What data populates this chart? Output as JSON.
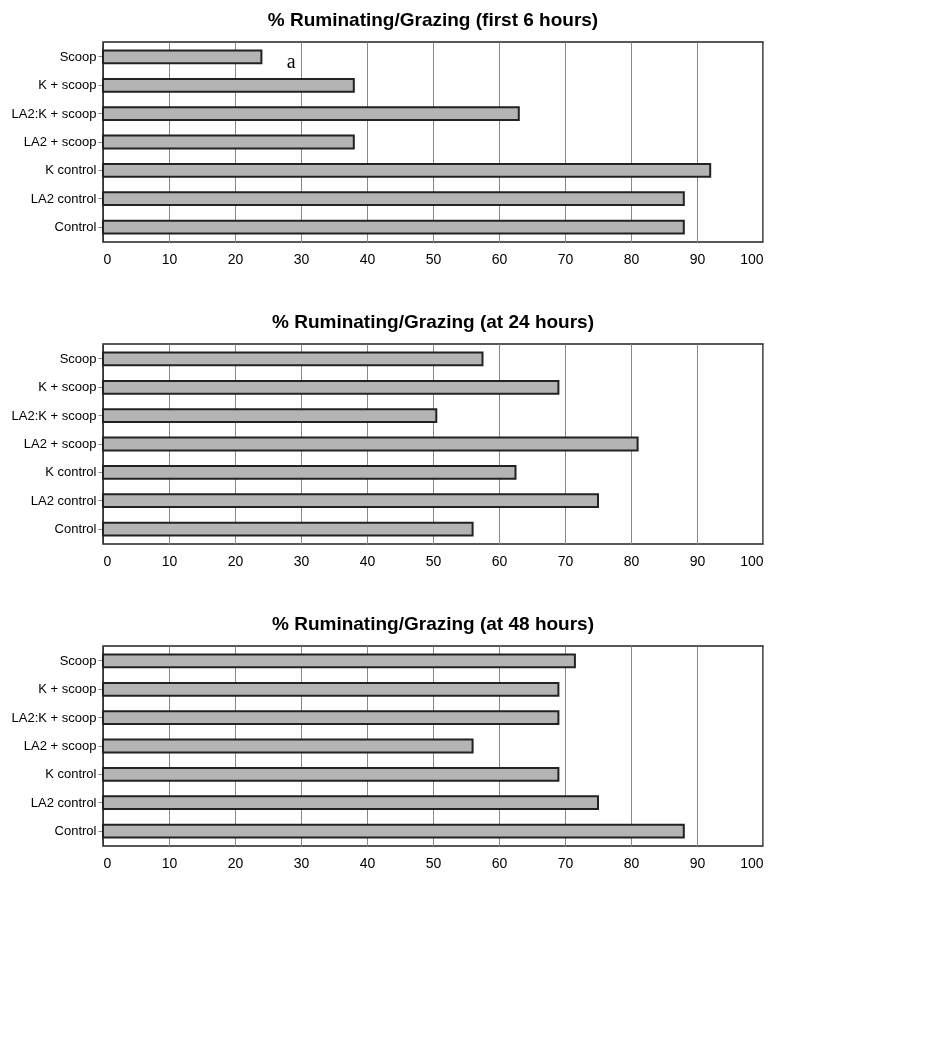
{
  "chart_data": [
    {
      "type": "bar",
      "orientation": "horizontal",
      "title": "%  Ruminating/Grazing  (first  6  hours)",
      "categories": [
        "Scoop",
        "K + scoop",
        "LA2:K + scoop",
        "LA2 + scoop",
        "K control",
        "LA2 control",
        "Control"
      ],
      "values": [
        24,
        38,
        63,
        38,
        92,
        88,
        88
      ],
      "color": "#b4b4b4",
      "xlim": [
        0,
        100
      ],
      "xticks": [
        0,
        10,
        20,
        30,
        40,
        50,
        60,
        70,
        80,
        90,
        100
      ],
      "grid": "x",
      "annotations": [
        "a"
      ]
    },
    {
      "type": "bar",
      "orientation": "horizontal",
      "title": "%  Ruminating/Grazing  (at  24  hours)",
      "categories": [
        "Scoop",
        "K + scoop",
        "LA2:K + scoop",
        "LA2 + scoop",
        "K control",
        "LA2 control",
        "Control"
      ],
      "values": [
        57.5,
        69,
        50.5,
        81,
        62.5,
        75,
        56
      ],
      "color": "#b4b4b4",
      "xlim": [
        0,
        100
      ],
      "xticks": [
        0,
        10,
        20,
        30,
        40,
        50,
        60,
        70,
        80,
        90,
        100
      ],
      "grid": "x"
    },
    {
      "type": "bar",
      "orientation": "horizontal",
      "title": "%  Ruminating/Grazing  (at  48  hours)",
      "categories": [
        "Scoop",
        "K + scoop",
        "LA2:K + scoop",
        "LA2 + scoop",
        "K control",
        "LA2 control",
        "Control"
      ],
      "values": [
        71.5,
        69,
        69,
        56,
        69,
        75,
        88
      ],
      "color": "#b4b4b4",
      "xlim": [
        0,
        100
      ],
      "xticks": [
        0,
        10,
        20,
        30,
        40,
        50,
        60,
        70,
        80,
        90,
        100
      ],
      "grid": "x"
    }
  ]
}
